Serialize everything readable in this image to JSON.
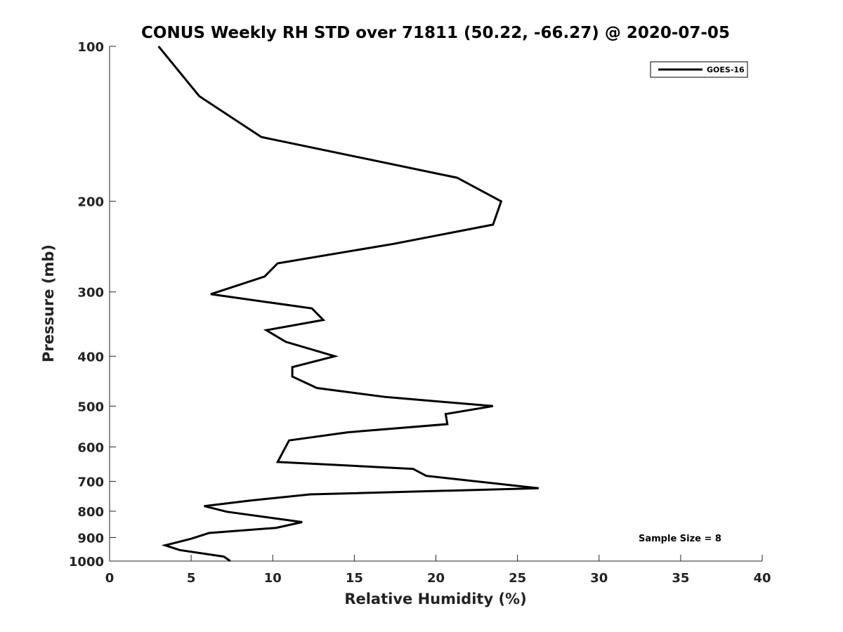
{
  "chart_data": {
    "type": "line",
    "title": "CONUS Weekly RH STD over 71811 (50.22, -66.27) @ 2020-07-05",
    "xlabel": "Relative Humidity (%)",
    "ylabel": "Pressure (mb)",
    "xlim": [
      0,
      40
    ],
    "ylim": [
      100,
      1000
    ],
    "y_scale": "log",
    "y_reversed": true,
    "x_ticks": [
      0,
      5,
      10,
      15,
      20,
      25,
      30,
      35,
      40
    ],
    "y_ticks": [
      100,
      200,
      300,
      400,
      500,
      600,
      700,
      800,
      900,
      1000
    ],
    "grid": false,
    "legend_position": "top-right",
    "series": [
      {
        "name": "GOES-16",
        "color": "#000000",
        "points": [
          {
            "x": 3.0,
            "y": 100
          },
          {
            "x": 5.5,
            "y": 125
          },
          {
            "x": 9.3,
            "y": 150
          },
          {
            "x": 21.3,
            "y": 180
          },
          {
            "x": 24.0,
            "y": 200
          },
          {
            "x": 23.5,
            "y": 222
          },
          {
            "x": 17.4,
            "y": 242
          },
          {
            "x": 10.3,
            "y": 264
          },
          {
            "x": 9.5,
            "y": 280
          },
          {
            "x": 6.2,
            "y": 303
          },
          {
            "x": 12.4,
            "y": 323
          },
          {
            "x": 13.1,
            "y": 340
          },
          {
            "x": 9.6,
            "y": 356
          },
          {
            "x": 10.8,
            "y": 375
          },
          {
            "x": 13.8,
            "y": 400
          },
          {
            "x": 11.2,
            "y": 420
          },
          {
            "x": 11.2,
            "y": 438
          },
          {
            "x": 12.7,
            "y": 461
          },
          {
            "x": 16.9,
            "y": 480
          },
          {
            "x": 23.5,
            "y": 500
          },
          {
            "x": 20.6,
            "y": 518
          },
          {
            "x": 20.7,
            "y": 542
          },
          {
            "x": 14.6,
            "y": 562
          },
          {
            "x": 11.0,
            "y": 583
          },
          {
            "x": 10.3,
            "y": 642
          },
          {
            "x": 18.6,
            "y": 662
          },
          {
            "x": 19.4,
            "y": 683
          },
          {
            "x": 26.3,
            "y": 722
          },
          {
            "x": 12.3,
            "y": 742
          },
          {
            "x": 8.6,
            "y": 763
          },
          {
            "x": 5.8,
            "y": 782
          },
          {
            "x": 7.2,
            "y": 802
          },
          {
            "x": 11.8,
            "y": 840
          },
          {
            "x": 10.2,
            "y": 862
          },
          {
            "x": 6.1,
            "y": 882
          },
          {
            "x": 5.0,
            "y": 905
          },
          {
            "x": 3.4,
            "y": 932
          },
          {
            "x": 4.3,
            "y": 952
          },
          {
            "x": 7.0,
            "y": 980
          },
          {
            "x": 7.4,
            "y": 1000
          }
        ]
      }
    ],
    "annotations": [
      {
        "text": "Sample Size = 8",
        "position": "bottom-right"
      }
    ]
  }
}
